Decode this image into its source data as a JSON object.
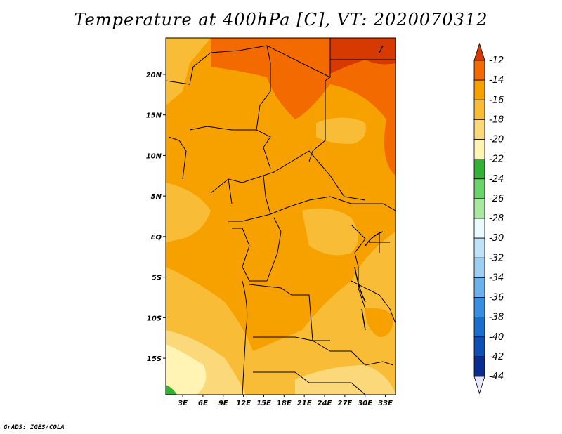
{
  "title": "Temperature at 400hPa [C], VT: 2020070312",
  "credit": "GrADS: IGES/COLA",
  "lat_ticks": [
    "20N",
    "15N",
    "10N",
    "5N",
    "EQ",
    "5S",
    "10S",
    "15S"
  ],
  "lon_ticks": [
    "3E",
    "6E",
    "9E",
    "12E",
    "15E",
    "18E",
    "21E",
    "24E",
    "27E",
    "30E",
    "33E"
  ],
  "colorbar": {
    "labels": [
      "-12",
      "-14",
      "-16",
      "-18",
      "-20",
      "-22",
      "-24",
      "-26",
      "-28",
      "-30",
      "-32",
      "-34",
      "-36",
      "-38",
      "-40",
      "-42",
      "-44"
    ],
    "colors": [
      "#d73a00",
      "#f26a00",
      "#f7a100",
      "#f9bc36",
      "#fbd87a",
      "#fff4b3",
      "#34b034",
      "#6bd36b",
      "#a8e8a0",
      "#e8fbff",
      "#c0e2f8",
      "#9ecff2",
      "#6cb1ea",
      "#3a8ee2",
      "#1b6dce",
      "#0d4fb2",
      "#0a2b90",
      "#0b0b62"
    ]
  },
  "map": {
    "lon_range": [
      0.5,
      34.5
    ],
    "lat_range": [
      -19.5,
      24.5
    ]
  }
}
